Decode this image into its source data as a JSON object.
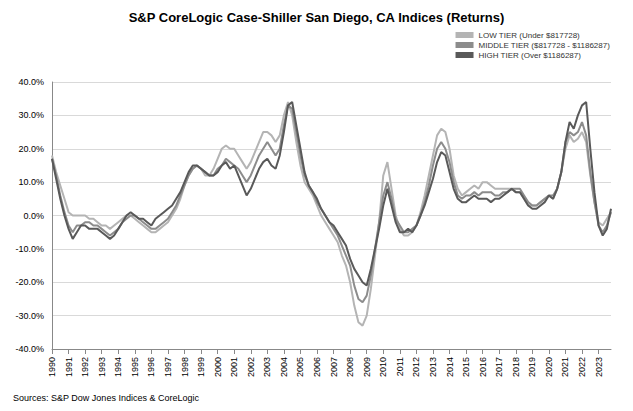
{
  "chart_data": {
    "type": "line",
    "title": "S&P CoreLogic Case-Shiller San Diego, CA Indices (Returns)",
    "source": "Sources: S&P Dow Jones Indices & CoreLogic",
    "legend": "top-right",
    "grid": true,
    "xlim": [
      1990,
      2023.75
    ],
    "xticks": [
      1990,
      1991,
      1992,
      1993,
      1994,
      1995,
      1996,
      1997,
      1998,
      1999,
      2000,
      2001,
      2002,
      2003,
      2004,
      2005,
      2006,
      2007,
      2008,
      2009,
      2010,
      2011,
      2012,
      2013,
      2014,
      2015,
      2016,
      2017,
      2018,
      2019,
      2020,
      2021,
      2022,
      2023
    ],
    "ylim": [
      -40,
      40
    ],
    "yticks": [
      {
        "value": -40,
        "label": "-40.0%"
      },
      {
        "value": -30,
        "label": "-30.0%"
      },
      {
        "value": -20,
        "label": "-20.0%"
      },
      {
        "value": -10,
        "label": "-10.0%"
      },
      {
        "value": 0,
        "label": "0.0%"
      },
      {
        "value": 10,
        "label": "10.0%"
      },
      {
        "value": 20,
        "label": "20.0%"
      },
      {
        "value": 30,
        "label": "30.0%"
      },
      {
        "value": 40,
        "label": "40.0%"
      }
    ],
    "x": [
      1990,
      1990.25,
      1990.5,
      1990.75,
      1991,
      1991.25,
      1991.5,
      1991.75,
      1992,
      1992.25,
      1992.5,
      1992.75,
      1993,
      1993.25,
      1993.5,
      1993.75,
      1994,
      1994.25,
      1994.5,
      1994.75,
      1995,
      1995.25,
      1995.5,
      1995.75,
      1996,
      1996.25,
      1996.5,
      1996.75,
      1997,
      1997.25,
      1997.5,
      1997.75,
      1998,
      1998.25,
      1998.5,
      1998.75,
      1999,
      1999.25,
      1999.5,
      1999.75,
      2000,
      2000.25,
      2000.5,
      2000.75,
      2001,
      2001.25,
      2001.5,
      2001.75,
      2002,
      2002.25,
      2002.5,
      2002.75,
      2003,
      2003.25,
      2003.5,
      2003.75,
      2004,
      2004.25,
      2004.5,
      2004.75,
      2005,
      2005.25,
      2005.5,
      2005.75,
      2006,
      2006.25,
      2006.5,
      2006.75,
      2007,
      2007.25,
      2007.5,
      2007.75,
      2008,
      2008.25,
      2008.5,
      2008.75,
      2009,
      2009.25,
      2009.5,
      2009.75,
      2010,
      2010.25,
      2010.5,
      2010.75,
      2011,
      2011.25,
      2011.5,
      2011.75,
      2012,
      2012.25,
      2012.5,
      2012.75,
      2013,
      2013.25,
      2013.5,
      2013.75,
      2014,
      2014.25,
      2014.5,
      2014.75,
      2015,
      2015.25,
      2015.5,
      2015.75,
      2016,
      2016.25,
      2016.5,
      2016.75,
      2017,
      2017.25,
      2017.5,
      2017.75,
      2018,
      2018.25,
      2018.5,
      2018.75,
      2019,
      2019.25,
      2019.5,
      2019.75,
      2020,
      2020.25,
      2020.5,
      2020.75,
      2021,
      2021.25,
      2021.5,
      2021.75,
      2022,
      2022.25,
      2022.5,
      2022.75,
      2023,
      2023.25,
      2023.5,
      2023.75
    ],
    "series": [
      {
        "name": "LOW TIER (Under $817728)",
        "color": "#b4b4b4",
        "values": [
          18,
          13,
          9,
          5,
          1,
          0,
          0,
          0,
          0,
          -1,
          -1,
          -2,
          -3,
          -3,
          -4,
          -3,
          -2,
          -1,
          0,
          0,
          -1,
          -2,
          -3,
          -4,
          -5,
          -5,
          -4,
          -3,
          -2,
          0,
          2,
          5,
          9,
          12,
          14,
          15,
          14,
          12,
          12,
          14,
          17,
          20,
          21,
          20,
          20,
          18,
          16,
          14,
          16,
          19,
          22,
          25,
          25,
          24,
          22,
          24,
          30,
          34,
          30,
          22,
          15,
          10,
          8,
          6,
          3,
          0,
          -2,
          -4,
          -6,
          -8,
          -12,
          -15,
          -20,
          -27,
          -32,
          -33,
          -30,
          -22,
          -12,
          -2,
          12,
          16,
          8,
          0,
          -4,
          -6,
          -6,
          -5,
          -3,
          1,
          6,
          12,
          18,
          24,
          26,
          25,
          20,
          12,
          8,
          6,
          7,
          8,
          9,
          8,
          10,
          10,
          9,
          8,
          8,
          8,
          8,
          8,
          7,
          7,
          5,
          3,
          3,
          3,
          4,
          5,
          6,
          5,
          8,
          13,
          20,
          24,
          22,
          23,
          25,
          22,
          12,
          4,
          -2,
          -3,
          -1,
          1
        ]
      },
      {
        "name": "MIDDLE TIER ($817728 - $1186287)",
        "color": "#8c8c8c",
        "values": [
          17,
          12,
          6,
          1,
          -3,
          -5,
          -3,
          -3,
          -2,
          -2,
          -3,
          -3,
          -4,
          -5,
          -6,
          -5,
          -4,
          -2,
          -1,
          0,
          0,
          -1,
          -2,
          -3,
          -4,
          -4,
          -3,
          -2,
          -1,
          1,
          3,
          6,
          9,
          12,
          14,
          15,
          14,
          13,
          12,
          12,
          14,
          15,
          17,
          16,
          15,
          14,
          12,
          10,
          12,
          15,
          18,
          20,
          22,
          20,
          18,
          20,
          27,
          33,
          32,
          25,
          18,
          12,
          9,
          7,
          4,
          2,
          0,
          -2,
          -4,
          -6,
          -9,
          -12,
          -15,
          -21,
          -25,
          -26,
          -24,
          -18,
          -10,
          -2,
          6,
          10,
          5,
          -1,
          -3,
          -5,
          -5,
          -4,
          -3,
          0,
          4,
          9,
          15,
          20,
          22,
          20,
          16,
          10,
          6,
          5,
          6,
          6,
          7,
          6,
          7,
          7,
          7,
          6,
          6,
          7,
          7,
          8,
          8,
          8,
          6,
          4,
          3,
          3,
          4,
          5,
          6,
          6,
          8,
          13,
          22,
          25,
          24,
          25,
          28,
          24,
          13,
          4,
          -3,
          -5,
          -3,
          1
        ]
      },
      {
        "name": "HIGH TIER (Over $1186287)",
        "color": "#595959",
        "values": [
          17,
          11,
          5,
          0,
          -4,
          -7,
          -5,
          -3,
          -3,
          -4,
          -4,
          -4,
          -5,
          -6,
          -7,
          -6,
          -4,
          -2,
          0,
          1,
          0,
          -1,
          -1,
          -2,
          -3,
          -1,
          0,
          1,
          2,
          3,
          5,
          7,
          10,
          13,
          15,
          15,
          14,
          13,
          12,
          12,
          13,
          15,
          16,
          14,
          15,
          12,
          9,
          6,
          8,
          11,
          14,
          16,
          17,
          15,
          14,
          18,
          25,
          33,
          34,
          27,
          20,
          13,
          9,
          7,
          5,
          2,
          0,
          -2,
          -3,
          -5,
          -7,
          -9,
          -13,
          -16,
          -18,
          -20,
          -21,
          -16,
          -10,
          -4,
          3,
          8,
          3,
          -2,
          -5,
          -5,
          -4,
          -5,
          -3,
          0,
          3,
          7,
          11,
          16,
          19,
          18,
          13,
          8,
          5,
          4,
          4,
          5,
          6,
          5,
          5,
          5,
          4,
          5,
          5,
          6,
          7,
          8,
          7,
          7,
          5,
          3,
          2,
          2,
          3,
          4,
          6,
          5,
          8,
          13,
          22,
          28,
          26,
          30,
          33,
          34,
          20,
          7,
          -3,
          -6,
          -4,
          2
        ]
      }
    ]
  }
}
